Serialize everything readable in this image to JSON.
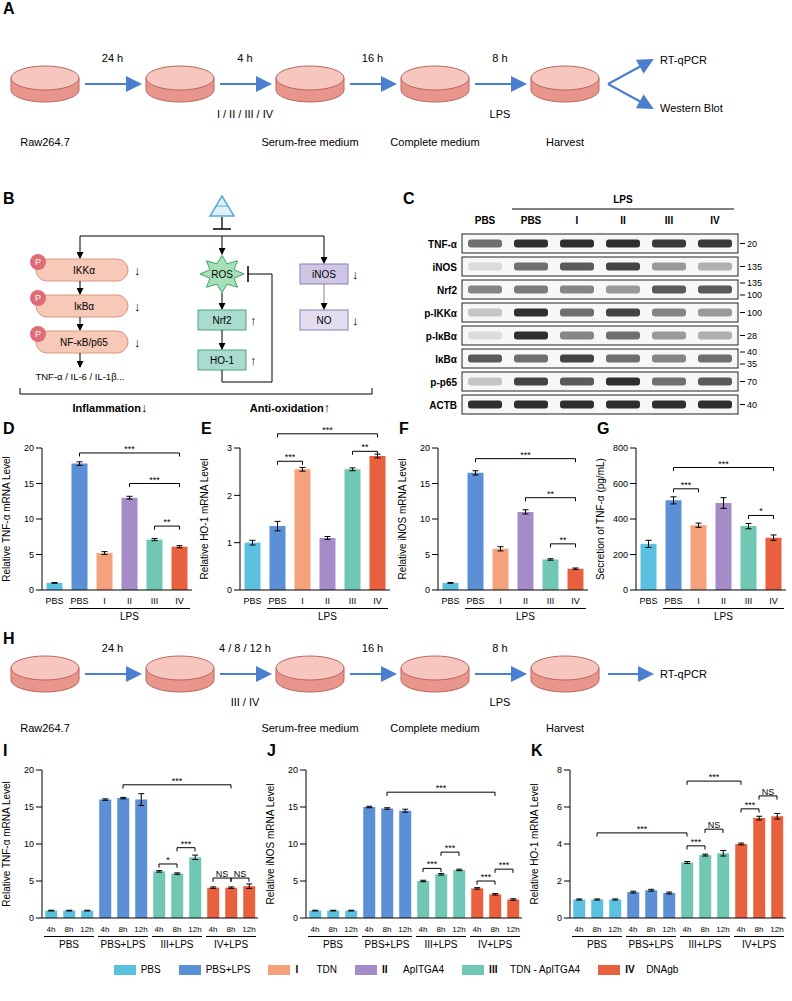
{
  "figure": {
    "A": {
      "panel": "A",
      "steps": [
        {
          "above": "24 h"
        },
        {
          "above": "4 h",
          "below": "I / II / III / IV"
        },
        {
          "above": "16 h"
        },
        {
          "above": "8 h",
          "below": "LPS"
        }
      ],
      "dish_labels": [
        "Raw264.7",
        null,
        "Serum-free medium",
        "Complete medium",
        "Harvest"
      ],
      "outputs": [
        "RT-qPCR",
        "Western Blot"
      ]
    },
    "B": {
      "panel": "B",
      "cascade": [
        {
          "label": "IKKα",
          "phospho": "P",
          "change": "↓"
        },
        {
          "label": "IκBα",
          "phospho": "P",
          "change": "↓"
        },
        {
          "label": "NF-κB/p65",
          "phospho": "P",
          "change": "↓"
        }
      ],
      "cytokines": "TNF-α / IL-6 / IL-1β...",
      "oxidative": [
        {
          "label": "ROS"
        },
        {
          "label": "Nrf2",
          "change": "↑"
        },
        {
          "label": "HO-1",
          "change": "↑"
        }
      ],
      "nitric": [
        {
          "label": "iNOS",
          "change": "↓"
        },
        {
          "label": "NO",
          "change": "↓"
        }
      ],
      "outcomes": [
        {
          "label": "Inflammation",
          "change": "↓"
        },
        {
          "label": "Anti-oxidation",
          "change": "↑"
        }
      ]
    },
    "C": {
      "panel": "C",
      "treatment": {
        "label": "LPS",
        "from": 1,
        "to": 5
      },
      "lanes": [
        "PBS",
        "PBS",
        "I",
        "II",
        "III",
        "IV"
      ],
      "rows": [
        {
          "label": "TNF-α",
          "mw": [
            20
          ],
          "intensity": [
            0.6,
            0.9,
            0.9,
            0.9,
            0.85,
            0.85
          ]
        },
        {
          "label": "iNOS",
          "mw": [
            135
          ],
          "intensity": [
            0.1,
            0.6,
            0.7,
            0.8,
            0.4,
            0.3
          ]
        },
        {
          "label": "Nrf2",
          "mw": [
            135,
            100
          ],
          "intensity": [
            0.5,
            0.55,
            0.5,
            0.4,
            0.7,
            0.7
          ]
        },
        {
          "label": "p-IKKα",
          "mw": [
            100
          ],
          "intensity": [
            0.2,
            0.9,
            0.6,
            0.8,
            0.5,
            0.4
          ]
        },
        {
          "label": "p-IκBα",
          "mw": [
            28
          ],
          "intensity": [
            0.1,
            0.9,
            0.5,
            0.6,
            0.4,
            0.3
          ]
        },
        {
          "label": "IκBα",
          "mw": [
            40,
            35
          ],
          "intensity": [
            0.7,
            0.6,
            0.8,
            0.6,
            0.5,
            0.6
          ]
        },
        {
          "label": "p-p65",
          "mw": [
            70
          ],
          "intensity": [
            0.2,
            0.8,
            0.7,
            0.9,
            0.6,
            0.7
          ]
        },
        {
          "label": "ACTB",
          "mw": [
            40
          ],
          "intensity": [
            0.9,
            0.9,
            0.9,
            0.9,
            0.9,
            0.9
          ]
        }
      ]
    },
    "H": {
      "panel": "H",
      "steps": [
        {
          "above": "24 h"
        },
        {
          "above": "4 / 8 / 12 h",
          "below": "III / IV"
        },
        {
          "above": "16 h"
        },
        {
          "above": "8 h",
          "below": "LPS"
        }
      ],
      "dish_labels": [
        "Raw264.7",
        null,
        "Serum-free medium",
        "Complete medium",
        "Harvest"
      ],
      "outputs": [
        "RT-qPCR"
      ]
    }
  },
  "chart_data": [
    {
      "panel": "D",
      "type": "bar",
      "y_label": "Relative TNF-α mRNA Level",
      "categories": [
        "PBS",
        "PBS",
        "I",
        "II",
        "III",
        "IV"
      ],
      "values": [
        1.0,
        17.8,
        5.2,
        13.0,
        7.1,
        6.1
      ],
      "errors": [
        0.05,
        0.25,
        0.2,
        0.2,
        0.15,
        0.15
      ],
      "colors": [
        "#5cc0e0",
        "#5b8fd6",
        "#f5a27c",
        "#a68bc9",
        "#6fc7b4",
        "#e8603e"
      ],
      "ylim": [
        0,
        20
      ],
      "yticks": [
        0,
        5,
        10,
        15,
        20
      ],
      "groups": [
        {
          "label": "LPS",
          "from": 1,
          "to": 5
        }
      ],
      "annotations": [
        {
          "text": "***",
          "from": 1,
          "to": 5,
          "y": 19.3
        },
        {
          "text": "***",
          "from": 3,
          "to": 5,
          "y": 15
        },
        {
          "text": "**",
          "from": 4,
          "to": 5,
          "y": 9
        }
      ]
    },
    {
      "panel": "E",
      "type": "bar",
      "y_label": "Relative HO-1 mRNA Level",
      "categories": [
        "PBS",
        "PBS",
        "I",
        "II",
        "III",
        "IV"
      ],
      "values": [
        1.0,
        1.35,
        2.55,
        1.1,
        2.55,
        2.83
      ],
      "errors": [
        0.05,
        0.1,
        0.04,
        0.03,
        0.03,
        0.04
      ],
      "colors": [
        "#5cc0e0",
        "#5b8fd6",
        "#f5a27c",
        "#a68bc9",
        "#6fc7b4",
        "#e8603e"
      ],
      "ylim": [
        0,
        3
      ],
      "yticks": [
        0,
        1,
        2,
        3
      ],
      "groups": [
        {
          "label": "LPS",
          "from": 1,
          "to": 5
        }
      ],
      "annotations": [
        {
          "text": "***",
          "from": 1,
          "to": 5,
          "y": 3.3
        },
        {
          "text": "***",
          "from": 1,
          "to": 2,
          "y": 2.72
        },
        {
          "text": "**",
          "from": 4,
          "to": 5,
          "y": 2.93
        }
      ]
    },
    {
      "panel": "F",
      "type": "bar",
      "y_label": "Relative iNOS mRNA Level",
      "categories": [
        "PBS",
        "PBS",
        "I",
        "II",
        "III",
        "IV"
      ],
      "values": [
        1.0,
        16.5,
        5.8,
        11.0,
        4.3,
        3.0
      ],
      "errors": [
        0.05,
        0.3,
        0.3,
        0.3,
        0.1,
        0.1
      ],
      "colors": [
        "#5cc0e0",
        "#5b8fd6",
        "#f5a27c",
        "#a68bc9",
        "#6fc7b4",
        "#e8603e"
      ],
      "ylim": [
        0,
        20
      ],
      "yticks": [
        0,
        5,
        10,
        15,
        20
      ],
      "groups": [
        {
          "label": "LPS",
          "from": 1,
          "to": 5
        }
      ],
      "annotations": [
        {
          "text": "***",
          "from": 1,
          "to": 5,
          "y": 18.5
        },
        {
          "text": "**",
          "from": 3,
          "to": 5,
          "y": 13
        },
        {
          "text": "**",
          "from": 4,
          "to": 5,
          "y": 6.5
        }
      ]
    },
    {
      "panel": "G",
      "type": "bar",
      "y_label": "Secretion of TNF-α (pg/mL)",
      "categories": [
        "PBS",
        "PBS",
        "I",
        "II",
        "III",
        "IV"
      ],
      "values": [
        260,
        505,
        365,
        490,
        360,
        295
      ],
      "errors": [
        20,
        20,
        12,
        30,
        15,
        15
      ],
      "colors": [
        "#5cc0e0",
        "#5b8fd6",
        "#f5a27c",
        "#a68bc9",
        "#6fc7b4",
        "#e8603e"
      ],
      "ylim": [
        0,
        800
      ],
      "yticks": [
        0,
        200,
        400,
        600,
        800
      ],
      "groups": [
        {
          "label": "LPS",
          "from": 1,
          "to": 5
        }
      ],
      "annotations": [
        {
          "text": "***",
          "from": 1,
          "to": 2,
          "y": 570
        },
        {
          "text": "***",
          "from": 1,
          "to": 5,
          "y": 690
        },
        {
          "text": "*",
          "from": 4,
          "to": 5,
          "y": 420
        }
      ]
    },
    {
      "panel": "I",
      "type": "bar",
      "y_label": "Relative TNF-α mRNA Level",
      "categories": [
        "4h",
        "8h",
        "12h",
        "4h",
        "8h",
        "12h",
        "4h",
        "8h",
        "12h",
        "4h",
        "8h",
        "12h"
      ],
      "values": [
        1,
        1,
        1,
        16,
        16.2,
        16,
        6.3,
        6.0,
        8.2,
        4.1,
        4.1,
        4.3
      ],
      "errors": [
        0.05,
        0.05,
        0.05,
        0.1,
        0.1,
        0.8,
        0.1,
        0.1,
        0.3,
        0.1,
        0.1,
        0.3
      ],
      "colors": [
        "#5cc0e0",
        "#5cc0e0",
        "#5cc0e0",
        "#5b8fd6",
        "#5b8fd6",
        "#5b8fd6",
        "#6fc7b4",
        "#6fc7b4",
        "#6fc7b4",
        "#e8603e",
        "#e8603e",
        "#e8603e"
      ],
      "ylim": [
        0,
        20
      ],
      "yticks": [
        0,
        5,
        10,
        15,
        20
      ],
      "groups": [
        {
          "label": "PBS",
          "from": 0,
          "to": 2
        },
        {
          "label": "PBS+LPS",
          "from": 3,
          "to": 5
        },
        {
          "label": "III+LPS",
          "from": 6,
          "to": 8
        },
        {
          "label": "IV+LPS",
          "from": 9,
          "to": 11
        }
      ],
      "annotations": [
        {
          "text": "*",
          "from": 6,
          "to": 7,
          "y": 7.3
        },
        {
          "text": "***",
          "from": 7,
          "to": 8,
          "y": 9.5
        },
        {
          "text": "NS",
          "from": 9,
          "to": 10,
          "y": 5.4
        },
        {
          "text": "NS",
          "from": 10,
          "to": 11,
          "y": 5.4
        },
        {
          "text": "***",
          "from": 4,
          "to": 10,
          "y": 18
        }
      ]
    },
    {
      "panel": "J",
      "type": "bar",
      "y_label": "Relative iNOS mRNA Level",
      "categories": [
        "4h",
        "8h",
        "12h",
        "4h",
        "8h",
        "12h",
        "4h",
        "8h",
        "12h",
        "4h",
        "8h",
        "12h"
      ],
      "values": [
        1,
        1,
        1,
        15,
        14.8,
        14.5,
        5.0,
        5.9,
        6.5,
        4.0,
        3.2,
        2.5
      ],
      "errors": [
        0.05,
        0.05,
        0.05,
        0.1,
        0.1,
        0.2,
        0.1,
        0.1,
        0.1,
        0.1,
        0.1,
        0.1
      ],
      "colors": [
        "#5cc0e0",
        "#5cc0e0",
        "#5cc0e0",
        "#5b8fd6",
        "#5b8fd6",
        "#5b8fd6",
        "#6fc7b4",
        "#6fc7b4",
        "#6fc7b4",
        "#e8603e",
        "#e8603e",
        "#e8603e"
      ],
      "ylim": [
        0,
        20
      ],
      "yticks": [
        0,
        5,
        10,
        15,
        20
      ],
      "groups": [
        {
          "label": "PBS",
          "from": 0,
          "to": 2
        },
        {
          "label": "PBS+LPS",
          "from": 3,
          "to": 5
        },
        {
          "label": "III+LPS",
          "from": 6,
          "to": 8
        },
        {
          "label": "IV+LPS",
          "from": 9,
          "to": 11
        }
      ],
      "annotations": [
        {
          "text": "***",
          "from": 6,
          "to": 7,
          "y": 6.7
        },
        {
          "text": "***",
          "from": 7,
          "to": 8,
          "y": 8.9
        },
        {
          "text": "***",
          "from": 9,
          "to": 10,
          "y": 5.0
        },
        {
          "text": "***",
          "from": 10,
          "to": 11,
          "y": 6.6
        },
        {
          "text": "***",
          "from": 4,
          "to": 10,
          "y": 17
        }
      ]
    },
    {
      "panel": "K",
      "type": "bar",
      "y_label": "Relative HO-1 mRNA Level",
      "categories": [
        "4h",
        "8h",
        "12h",
        "4h",
        "8h",
        "12h",
        "4h",
        "8h",
        "12h",
        "4h",
        "8h",
        "12h"
      ],
      "values": [
        1,
        1,
        1,
        1.4,
        1.5,
        1.35,
        3.0,
        3.4,
        3.5,
        4.0,
        5.4,
        5.5
      ],
      "errors": [
        0.03,
        0.03,
        0.03,
        0.05,
        0.05,
        0.05,
        0.05,
        0.05,
        0.15,
        0.05,
        0.1,
        0.15
      ],
      "colors": [
        "#5cc0e0",
        "#5cc0e0",
        "#5cc0e0",
        "#5b8fd6",
        "#5b8fd6",
        "#5b8fd6",
        "#6fc7b4",
        "#6fc7b4",
        "#6fc7b4",
        "#e8603e",
        "#e8603e",
        "#e8603e"
      ],
      "ylim": [
        0,
        8
      ],
      "yticks": [
        0,
        2,
        4,
        6,
        8
      ],
      "groups": [
        {
          "label": "PBS",
          "from": 0,
          "to": 2
        },
        {
          "label": "PBS+LPS",
          "from": 3,
          "to": 5
        },
        {
          "label": "III+LPS",
          "from": 6,
          "to": 8
        },
        {
          "label": "IV+LPS",
          "from": 9,
          "to": 11
        }
      ],
      "annotations": [
        {
          "text": "***",
          "from": 6,
          "to": 7,
          "y": 3.9
        },
        {
          "text": "NS",
          "from": 7,
          "to": 8,
          "y": 4.8
        },
        {
          "text": "***",
          "from": 9,
          "to": 10,
          "y": 5.9
        },
        {
          "text": "NS",
          "from": 10,
          "to": 11,
          "y": 6.6
        },
        {
          "text": "***",
          "from": 6,
          "to": 9,
          "y": 7.4
        },
        {
          "text": "***",
          "from": 1,
          "to": 6,
          "y": 4.6
        }
      ]
    }
  ],
  "figure_legend": [
    {
      "name": "PBS",
      "color": "#5cc0e0"
    },
    {
      "name": "PBS+LPS",
      "color": "#5b8fd6"
    },
    {
      "key": "I",
      "name": "TDN",
      "color": "#f5a27c"
    },
    {
      "key": "II",
      "name": "ApITGA4",
      "color": "#a68bc9"
    },
    {
      "key": "III",
      "name": "TDN - ApITGA4",
      "color": "#6fc7b4"
    },
    {
      "key": "IV",
      "name": "DNAgb",
      "color": "#e8603e"
    }
  ]
}
